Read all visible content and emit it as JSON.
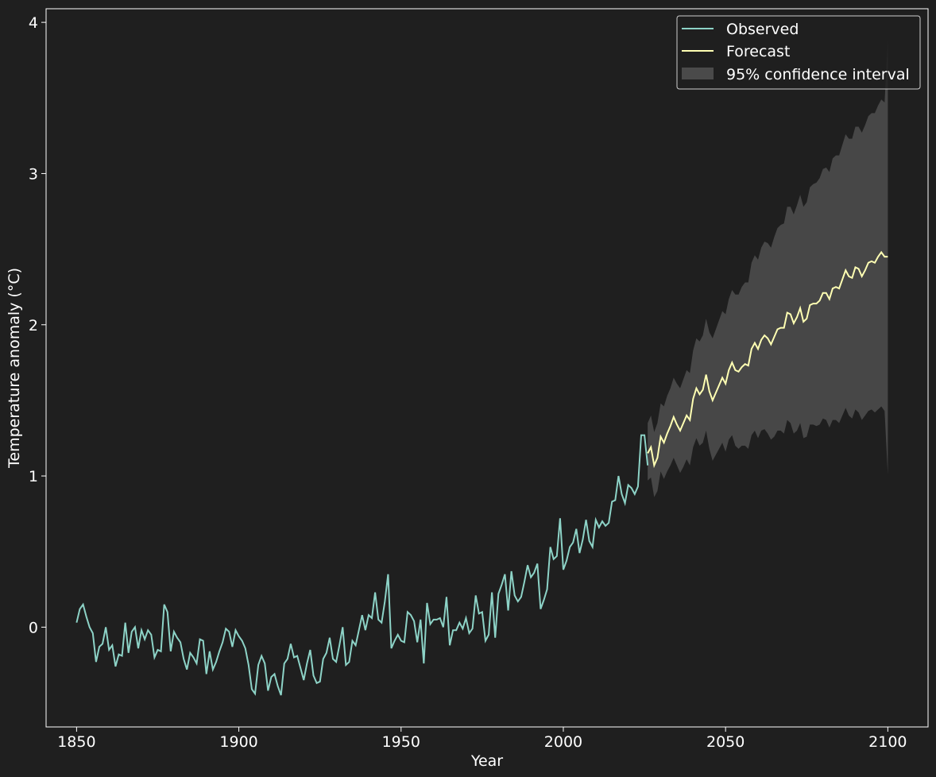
{
  "chart_data": {
    "type": "line",
    "title": "",
    "xlabel": "Year",
    "ylabel": "Temperature anomaly (°C)",
    "xlim": [
      1840.6,
      2112.4
    ],
    "ylim": [
      -0.66,
      4.09
    ],
    "xticks": [
      1850,
      1900,
      1950,
      2000,
      2050,
      2100
    ],
    "yticks": [
      0,
      1,
      2,
      3,
      4
    ],
    "grid": false,
    "legend_position": "top-right",
    "colors": {
      "background": "#1f1f1f",
      "axes": "#ffffff",
      "observed": "#8dd3c7",
      "forecast": "#ffffb3",
      "confidence": "#4a4a4a"
    },
    "series": [
      {
        "name": "Observed",
        "x_start": 1850,
        "values": [
          0.03,
          0.12,
          0.15,
          0.07,
          0.0,
          -0.04,
          -0.23,
          -0.13,
          -0.11,
          0.0,
          -0.15,
          -0.12,
          -0.26,
          -0.18,
          -0.19,
          0.03,
          -0.17,
          -0.03,
          0.0,
          -0.14,
          -0.02,
          -0.08,
          -0.02,
          -0.05,
          -0.2,
          -0.15,
          -0.16,
          0.15,
          0.1,
          -0.16,
          -0.03,
          -0.07,
          -0.1,
          -0.21,
          -0.28,
          -0.17,
          -0.2,
          -0.24,
          -0.08,
          -0.09,
          -0.31,
          -0.16,
          -0.28,
          -0.23,
          -0.16,
          -0.1,
          -0.01,
          -0.03,
          -0.13,
          -0.02,
          -0.06,
          -0.09,
          -0.14,
          -0.25,
          -0.41,
          -0.44,
          -0.25,
          -0.19,
          -0.24,
          -0.42,
          -0.33,
          -0.31,
          -0.39,
          -0.45,
          -0.24,
          -0.21,
          -0.11,
          -0.2,
          -0.19,
          -0.27,
          -0.35,
          -0.24,
          -0.15,
          -0.32,
          -0.37,
          -0.36,
          -0.21,
          -0.17,
          -0.07,
          -0.21,
          -0.23,
          -0.12,
          0.0,
          -0.25,
          -0.23,
          -0.09,
          -0.12,
          -0.02,
          0.08,
          -0.02,
          0.08,
          0.06,
          0.23,
          0.05,
          0.03,
          0.17,
          0.35,
          -0.14,
          -0.09,
          -0.05,
          -0.09,
          -0.1,
          0.1,
          0.08,
          0.04,
          -0.1,
          0.05,
          -0.24,
          0.16,
          0.02,
          0.05,
          0.05,
          0.06,
          0.0,
          0.2,
          -0.12,
          -0.02,
          -0.02,
          0.03,
          -0.01,
          0.06,
          -0.04,
          -0.01,
          0.21,
          0.09,
          0.1,
          -0.09,
          -0.05,
          0.23,
          -0.07,
          0.22,
          0.28,
          0.35,
          0.11,
          0.37,
          0.21,
          0.17,
          0.2,
          0.3,
          0.41,
          0.33,
          0.36,
          0.42,
          0.12,
          0.18,
          0.25,
          0.53,
          0.45,
          0.47,
          0.72,
          0.38,
          0.44,
          0.53,
          0.56,
          0.65,
          0.49,
          0.58,
          0.71,
          0.57,
          0.53,
          0.71,
          0.66,
          0.7,
          0.67,
          0.69,
          0.83,
          0.84,
          1.0,
          0.88,
          0.82,
          0.94,
          0.92,
          0.88,
          0.93,
          1.27,
          1.27,
          1.07
        ]
      },
      {
        "name": "Forecast",
        "x_start": 2026,
        "values": [
          1.15,
          1.19,
          1.07,
          1.12,
          1.26,
          1.22,
          1.28,
          1.33,
          1.39,
          1.34,
          1.3,
          1.35,
          1.4,
          1.37,
          1.51,
          1.58,
          1.54,
          1.57,
          1.67,
          1.56,
          1.5,
          1.55,
          1.6,
          1.65,
          1.61,
          1.7,
          1.75,
          1.7,
          1.69,
          1.72,
          1.74,
          1.73,
          1.84,
          1.88,
          1.84,
          1.9,
          1.93,
          1.91,
          1.87,
          1.92,
          1.97,
          1.98,
          1.98,
          2.08,
          2.07,
          2.01,
          2.05,
          2.11,
          2.02,
          2.04,
          2.13,
          2.14,
          2.14,
          2.16,
          2.21,
          2.21,
          2.17,
          2.24,
          2.25,
          2.24,
          2.3,
          2.36,
          2.32,
          2.31,
          2.38,
          2.37,
          2.32,
          2.36,
          2.41,
          2.42,
          2.41,
          2.45,
          2.48,
          2.45,
          2.45
        ]
      },
      {
        "name": "95% confidence interval",
        "x_start": 2026,
        "upper": [
          1.35,
          1.4,
          1.29,
          1.35,
          1.48,
          1.46,
          1.53,
          1.58,
          1.65,
          1.61,
          1.58,
          1.64,
          1.7,
          1.68,
          1.83,
          1.91,
          1.89,
          1.93,
          2.04,
          1.95,
          1.91,
          1.97,
          2.03,
          2.09,
          2.07,
          2.17,
          2.23,
          2.2,
          2.2,
          2.25,
          2.28,
          2.28,
          2.41,
          2.46,
          2.43,
          2.51,
          2.55,
          2.54,
          2.51,
          2.58,
          2.64,
          2.66,
          2.67,
          2.78,
          2.78,
          2.73,
          2.79,
          2.86,
          2.78,
          2.81,
          2.91,
          2.93,
          2.94,
          2.97,
          3.03,
          3.04,
          3.01,
          3.1,
          3.12,
          3.12,
          3.19,
          3.26,
          3.23,
          3.23,
          3.31,
          3.31,
          3.27,
          3.32,
          3.38,
          3.4,
          3.4,
          3.45,
          3.49,
          3.47,
          3.88
        ],
        "lower": [
          0.97,
          0.99,
          0.86,
          0.9,
          1.03,
          0.98,
          1.03,
          1.07,
          1.12,
          1.07,
          1.02,
          1.06,
          1.11,
          1.07,
          1.19,
          1.25,
          1.2,
          1.22,
          1.3,
          1.18,
          1.1,
          1.14,
          1.18,
          1.22,
          1.16,
          1.24,
          1.27,
          1.2,
          1.18,
          1.2,
          1.2,
          1.18,
          1.27,
          1.3,
          1.25,
          1.3,
          1.31,
          1.28,
          1.24,
          1.26,
          1.3,
          1.3,
          1.28,
          1.37,
          1.35,
          1.28,
          1.3,
          1.35,
          1.25,
          1.26,
          1.34,
          1.34,
          1.33,
          1.34,
          1.38,
          1.37,
          1.32,
          1.37,
          1.37,
          1.35,
          1.4,
          1.45,
          1.4,
          1.38,
          1.44,
          1.42,
          1.37,
          1.4,
          1.43,
          1.44,
          1.42,
          1.44,
          1.46,
          1.43,
          1.01
        ]
      }
    ]
  }
}
